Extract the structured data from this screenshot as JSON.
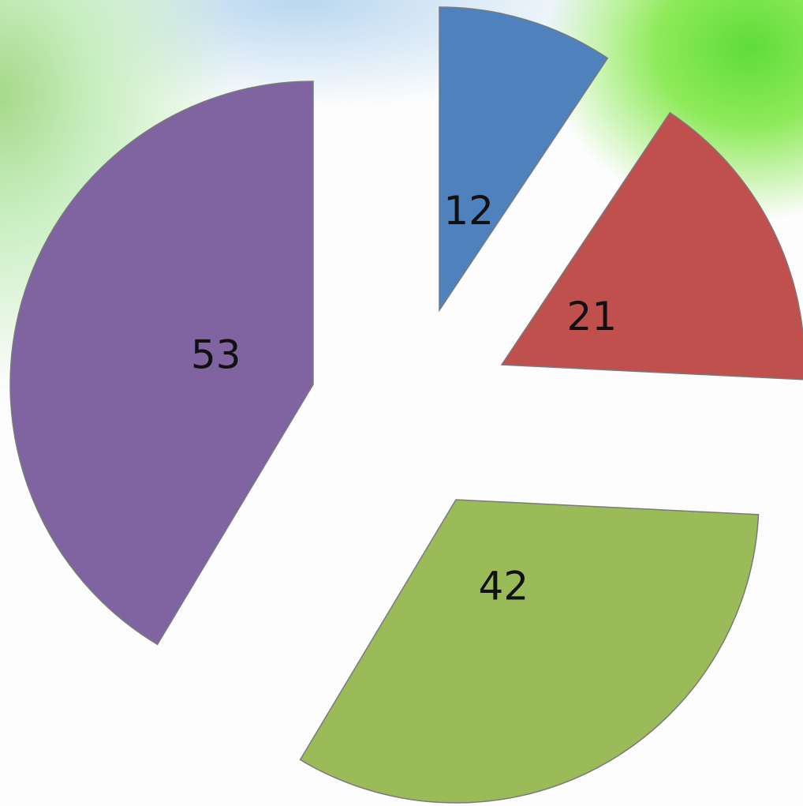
{
  "chart_data": {
    "type": "pie",
    "start_angle": 0,
    "direction": "clockwise",
    "exploded": true,
    "categories": [
      null,
      null,
      null,
      null
    ],
    "values": [
      12,
      21,
      42,
      53
    ],
    "colors": [
      "#4f81bd",
      "#c0504d",
      "#9bbb59",
      "#8064a2"
    ]
  }
}
